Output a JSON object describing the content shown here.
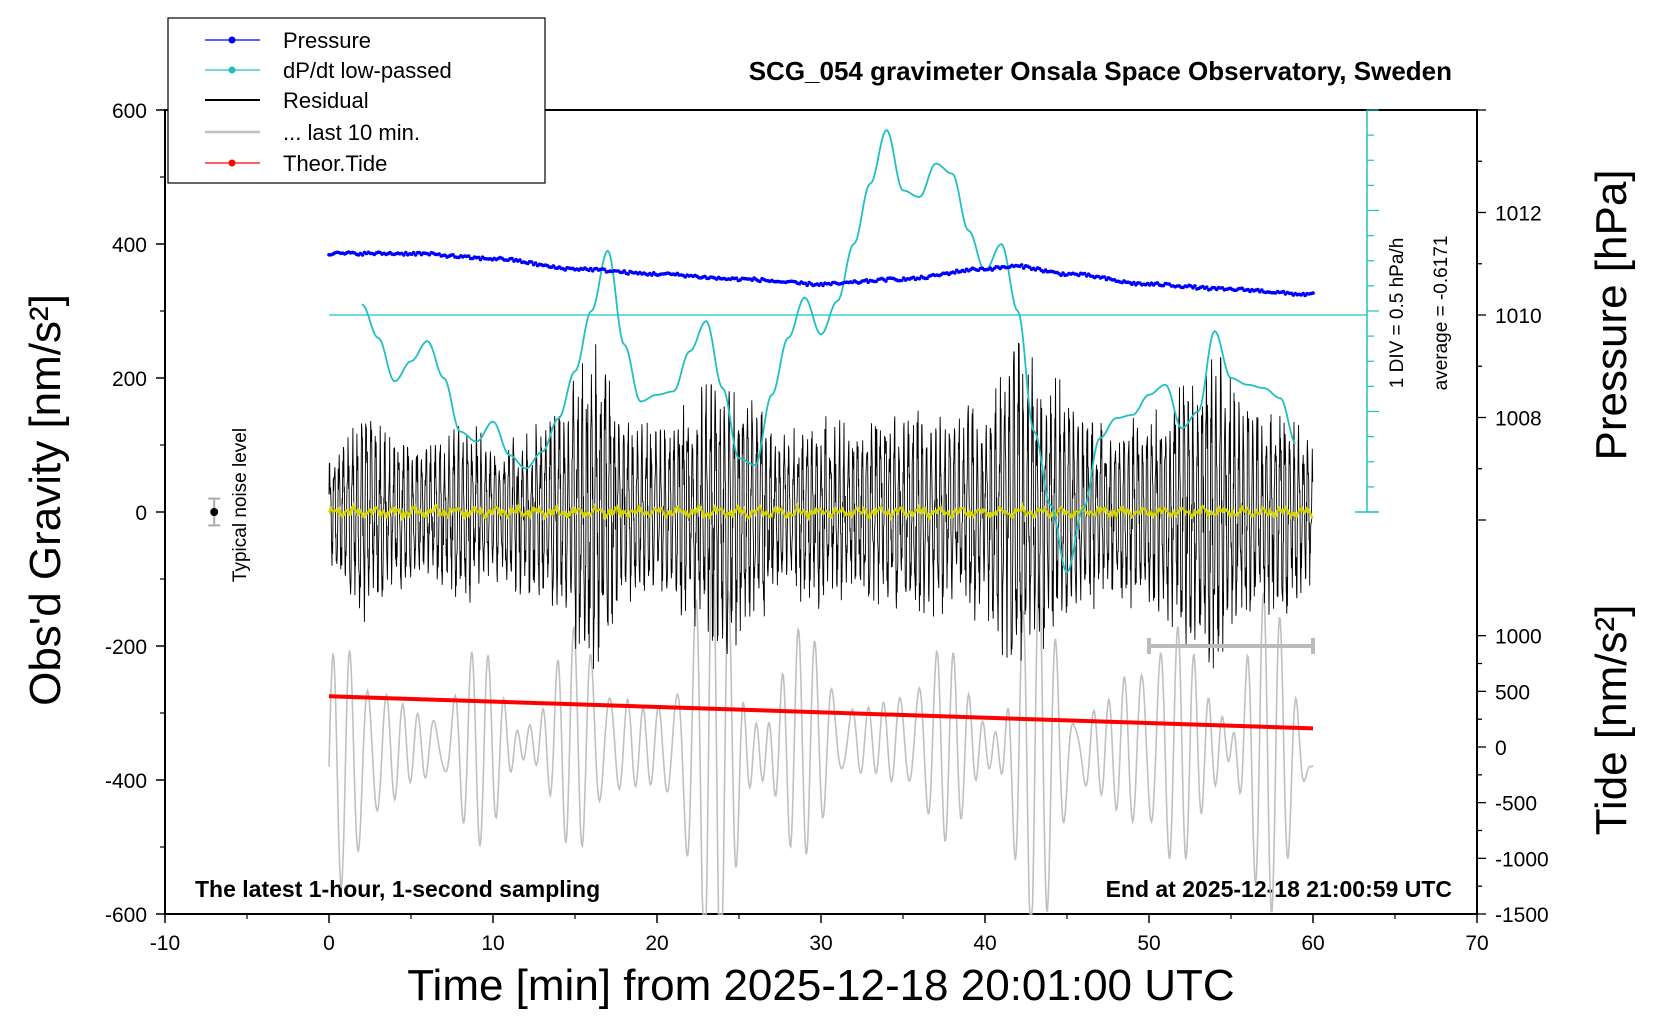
{
  "chart_data": {
    "type": "line",
    "title": "SCG_054 gravimeter Onsala Space Observatory, Sweden",
    "xlabel": "Time [min] from 2025-12-18 20:01:00 UTC",
    "ylabel": "Obs'd Gravity [nm/s²]",
    "ylabel_right_top": "Pressure [hPa]",
    "ylabel_right_bottom": "Tide [nm/s²]",
    "xlim": [
      -10,
      70
    ],
    "ylim": [
      -600,
      600
    ],
    "x_ticks": [
      "-10",
      "0",
      "10",
      "20",
      "30",
      "40",
      "50",
      "60",
      "70"
    ],
    "y_ticks": [
      "600",
      "400",
      "200",
      "0",
      "-200",
      "-400",
      "-600"
    ],
    "pressure_ticks": [
      "1012",
      "1010",
      "1008"
    ],
    "pressure_range": [
      1006,
      1014
    ],
    "tide_ticks": [
      "1000",
      "500",
      "0",
      "-500",
      "-1000",
      "-1500"
    ],
    "tide_range": [
      -1500,
      1500
    ],
    "legend": [
      "Pressure",
      "dP/dt low-passed",
      "Residual",
      "... last 10 min.",
      "Theor.Tide"
    ],
    "legend_location": "top-left",
    "colors": {
      "pressure": "#0000ff",
      "dpdt": "#20c0c0",
      "residual": "#000000",
      "last10": "#c0c0c0",
      "tide": "#ff0000",
      "smoothed": "#d4d400"
    },
    "scale_note": "1 DIV = 0.5 hPa/h",
    "average_note": "average = -0.6171",
    "noise_label": "Typical noise level",
    "footer_left": "The latest 1-hour, 1-second sampling",
    "footer_right": "End at 2025-12-18 21:00:59 UTC",
    "dpdt_baseline_hpa": 1010,
    "tide_series": {
      "name": "Theor.Tide",
      "x": [
        0,
        60
      ],
      "y": [
        -275,
        -323
      ]
    },
    "pressure_series": {
      "name": "Pressure",
      "x": [
        0,
        5,
        10,
        15,
        20,
        25,
        30,
        35,
        40,
        42,
        45,
        50,
        55,
        60
      ],
      "y": [
        1011.2,
        1011.2,
        1011.1,
        1010.9,
        1010.8,
        1010.7,
        1010.6,
        1010.7,
        1010.9,
        1010.95,
        1010.8,
        1010.6,
        1010.5,
        1010.4
      ]
    },
    "dpdt_series": {
      "name": "dP/dt low-passed",
      "x": [
        2,
        3,
        4,
        5,
        6,
        7,
        8,
        9,
        10,
        11,
        12,
        13,
        14,
        15,
        16,
        17,
        18,
        19,
        20,
        21,
        22,
        23,
        24,
        25,
        26,
        27,
        28,
        29,
        30,
        31,
        32,
        33,
        34,
        35,
        36,
        37,
        38,
        39,
        40,
        41,
        42,
        43,
        44,
        45,
        46,
        47,
        48,
        49,
        50,
        51,
        52,
        53,
        54,
        55,
        56,
        57,
        58,
        59
      ],
      "y": [
        310,
        260,
        195,
        225,
        255,
        200,
        120,
        105,
        135,
        85,
        65,
        90,
        140,
        210,
        300,
        390,
        250,
        165,
        175,
        180,
        240,
        285,
        185,
        80,
        70,
        175,
        260,
        320,
        265,
        315,
        400,
        490,
        570,
        480,
        470,
        520,
        505,
        420,
        360,
        400,
        300,
        120,
        10,
        -90,
        5,
        110,
        140,
        145,
        175,
        190,
        125,
        150,
        270,
        200,
        190,
        185,
        170,
        100
      ]
    },
    "residual_envelope": {
      "name": "Residual",
      "x": [
        0,
        2,
        4,
        6,
        8,
        10,
        12,
        14,
        16,
        17,
        18,
        20,
        22,
        24,
        26,
        28,
        30,
        32,
        34,
        36,
        38,
        40,
        42,
        44,
        46,
        48,
        50,
        52,
        54,
        56,
        58,
        60
      ],
      "amplitude": [
        90,
        170,
        120,
        100,
        150,
        110,
        130,
        160,
        260,
        230,
        150,
        140,
        180,
        220,
        170,
        130,
        150,
        140,
        160,
        170,
        150,
        170,
        270,
        220,
        150,
        140,
        160,
        200,
        240,
        180,
        160,
        120
      ]
    },
    "last10_envelope": {
      "name": "... last 10 min.",
      "x": [
        0,
        5,
        10,
        15,
        20,
        22,
        24,
        26,
        30,
        35,
        40,
        42,
        45,
        50,
        55,
        60
      ],
      "center": [
        -380,
        -350,
        -350,
        -340,
        -350,
        -360,
        -380,
        -360,
        -340,
        -340,
        -350,
        -370,
        -360,
        -350,
        -350,
        -370
      ],
      "amplitude": [
        180,
        130,
        120,
        150,
        140,
        250,
        320,
        220,
        130,
        120,
        150,
        240,
        180,
        170,
        220,
        150
      ]
    },
    "last10_indicator": {
      "x": [
        50,
        60
      ],
      "y": -200
    },
    "noise_bar": {
      "x": -7,
      "y": 0,
      "error": 20
    }
  }
}
